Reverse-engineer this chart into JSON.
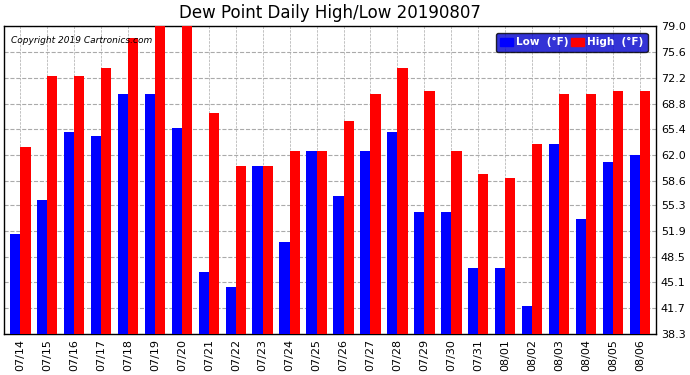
{
  "title": "Dew Point Daily High/Low 20190807",
  "copyright": "Copyright 2019 Cartronics.com",
  "dates": [
    "07/14",
    "07/15",
    "07/16",
    "07/17",
    "07/18",
    "07/19",
    "07/20",
    "07/21",
    "07/22",
    "07/23",
    "07/24",
    "07/25",
    "07/26",
    "07/27",
    "07/28",
    "07/29",
    "07/30",
    "07/31",
    "08/01",
    "08/02",
    "08/03",
    "08/04",
    "08/05",
    "08/06"
  ],
  "high": [
    63.0,
    72.5,
    72.5,
    73.5,
    77.5,
    79.5,
    79.5,
    67.5,
    60.5,
    60.5,
    62.5,
    62.5,
    66.5,
    70.0,
    73.5,
    70.5,
    62.5,
    59.5,
    59.0,
    63.5,
    70.0,
    70.0,
    70.5,
    70.5
  ],
  "low": [
    51.5,
    56.0,
    65.0,
    64.5,
    70.0,
    70.0,
    65.5,
    46.5,
    44.5,
    60.5,
    50.5,
    62.5,
    56.5,
    62.5,
    65.0,
    54.5,
    54.5,
    47.0,
    47.0,
    42.0,
    63.5,
    53.5,
    61.0,
    62.0
  ],
  "ylim_min": 38.3,
  "ylim_max": 79.0,
  "yticks": [
    38.3,
    41.7,
    45.1,
    48.5,
    51.9,
    55.3,
    58.6,
    62.0,
    65.4,
    68.8,
    72.2,
    75.6,
    79.0
  ],
  "color_low": "#0000ff",
  "color_high": "#ff0000",
  "bg_color": "#ffffff",
  "grid_color": "#aaaaaa",
  "bar_width": 0.38,
  "title_fontsize": 12,
  "tick_fontsize": 8,
  "legend_low_label": "Low  (°F)",
  "legend_high_label": "High  (°F)",
  "legend_bg": "#0000cc"
}
